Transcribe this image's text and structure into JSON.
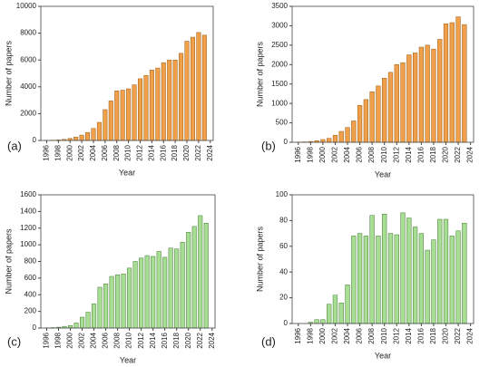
{
  "chart_data": [
    {
      "type": "bar",
      "annotation": "(a)",
      "xlabel": "Year",
      "ylabel": "Number of papers",
      "color": "#f0a04b",
      "edge": "#9a5a10",
      "x": [
        1996,
        1997,
        1998,
        1999,
        2000,
        2001,
        2002,
        2003,
        2004,
        2005,
        2006,
        2007,
        2008,
        2009,
        2010,
        2011,
        2012,
        2013,
        2014,
        2015,
        2016,
        2017,
        2018,
        2019,
        2020,
        2021,
        2022,
        2023
      ],
      "values": [
        10,
        20,
        40,
        80,
        150,
        250,
        400,
        600,
        900,
        1350,
        2300,
        2950,
        3700,
        3750,
        3850,
        4150,
        4600,
        4850,
        5250,
        5400,
        5800,
        6000,
        6000,
        6500,
        7400,
        7700,
        8050,
        7850
      ],
      "xlim": [
        1995,
        2024.5
      ],
      "xticks": [
        1996,
        1998,
        2000,
        2002,
        2004,
        2006,
        2008,
        2010,
        2012,
        2014,
        2016,
        2018,
        2020,
        2022,
        2024
      ],
      "ylim": [
        0,
        10000
      ],
      "yticks": [
        0,
        2000,
        4000,
        6000,
        8000,
        10000
      ]
    },
    {
      "type": "bar",
      "annotation": "(b)",
      "xlabel": "Year",
      "ylabel": "Number of papers",
      "color": "#f0a04b",
      "edge": "#9a5a10",
      "x": [
        1996,
        1997,
        1998,
        1999,
        2000,
        2001,
        2002,
        2003,
        2004,
        2005,
        2006,
        2007,
        2008,
        2009,
        2010,
        2011,
        2012,
        2013,
        2014,
        2015,
        2016,
        2017,
        2018,
        2019,
        2020,
        2021,
        2022,
        2023
      ],
      "values": [
        5,
        10,
        20,
        40,
        70,
        100,
        180,
        280,
        380,
        550,
        950,
        1100,
        1300,
        1450,
        1650,
        1800,
        2000,
        2050,
        2250,
        2300,
        2450,
        2500,
        2400,
        2650,
        3050,
        3080,
        3230,
        3030
      ],
      "xlim": [
        1995,
        2024.5
      ],
      "xticks": [
        1996,
        1998,
        2000,
        2002,
        2004,
        2006,
        2008,
        2010,
        2012,
        2014,
        2016,
        2018,
        2020,
        2022,
        2024
      ],
      "ylim": [
        0,
        3500
      ],
      "yticks": [
        0,
        500,
        1000,
        1500,
        2000,
        2500,
        3000,
        3500
      ]
    },
    {
      "type": "bar",
      "annotation": "(c)",
      "xlabel": "Year",
      "ylabel": "Number of papers",
      "color": "#a8dd94",
      "edge": "#3f7a30",
      "x": [
        1996,
        1997,
        1998,
        1999,
        2000,
        2001,
        2002,
        2003,
        2004,
        2005,
        2006,
        2007,
        2008,
        2009,
        2010,
        2011,
        2012,
        2013,
        2014,
        2015,
        2016,
        2017,
        2018,
        2019,
        2020,
        2021,
        2022,
        2023
      ],
      "values": [
        2,
        5,
        10,
        20,
        30,
        60,
        130,
        190,
        290,
        490,
        530,
        620,
        640,
        650,
        720,
        800,
        840,
        870,
        860,
        920,
        850,
        960,
        950,
        1030,
        1150,
        1220,
        1350,
        1260
      ],
      "xlim": [
        1995,
        2024.5
      ],
      "xticks": [
        1996,
        1998,
        2000,
        2002,
        2004,
        2006,
        2008,
        2010,
        2012,
        2014,
        2016,
        2018,
        2020,
        2022,
        2024
      ],
      "ylim": [
        0,
        1600
      ],
      "yticks": [
        0,
        200,
        400,
        600,
        800,
        1000,
        1200,
        1400,
        1600
      ]
    },
    {
      "type": "bar",
      "annotation": "(d)",
      "xlabel": "Year",
      "ylabel": "Number of papers",
      "color": "#a8dd94",
      "edge": "#3f7a30",
      "x": [
        1996,
        1997,
        1998,
        1999,
        2000,
        2001,
        2002,
        2003,
        2004,
        2005,
        2006,
        2007,
        2008,
        2009,
        2010,
        2011,
        2012,
        2013,
        2014,
        2015,
        2016,
        2017,
        2018,
        2019,
        2020,
        2021,
        2022,
        2023
      ],
      "values": [
        0,
        0,
        1,
        3,
        3,
        15,
        22,
        16,
        30,
        68,
        70,
        68,
        84,
        68,
        85,
        70,
        69,
        86,
        82,
        75,
        70,
        57,
        65,
        81,
        81,
        68,
        72,
        78
      ],
      "xlim": [
        1995,
        2024.5
      ],
      "xticks": [
        1996,
        1998,
        2000,
        2002,
        2004,
        2006,
        2008,
        2010,
        2012,
        2014,
        2016,
        2018,
        2020,
        2022,
        2024
      ],
      "ylim": [
        0,
        100
      ],
      "yticks": [
        0,
        20,
        40,
        60,
        80,
        100
      ]
    }
  ]
}
